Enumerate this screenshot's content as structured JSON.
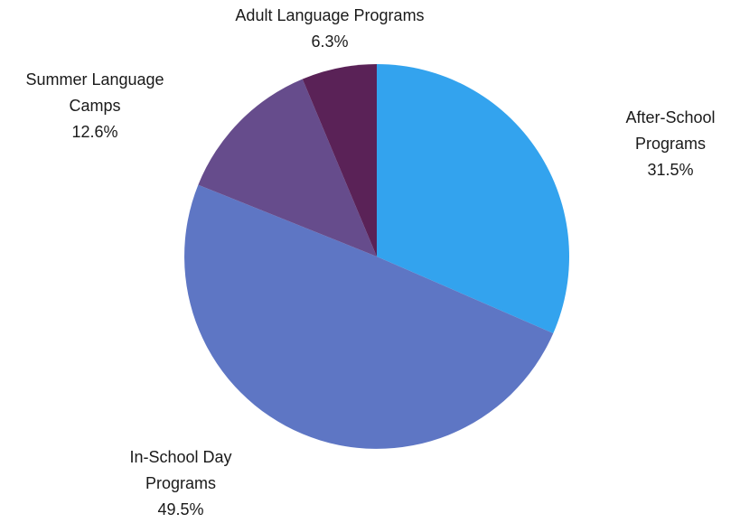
{
  "chart_data": {
    "type": "pie",
    "title": "",
    "slices": [
      {
        "label_lines": [
          "After-School",
          "Programs"
        ],
        "value": 31.5,
        "value_label": "31.5%",
        "color": "#33a3ee"
      },
      {
        "label_lines": [
          "In-School Day",
          "Programs"
        ],
        "value": 49.5,
        "value_label": "49.5%",
        "color": "#5e76c4"
      },
      {
        "label_lines": [
          "Summer Language",
          "Camps"
        ],
        "value": 12.6,
        "value_label": "12.6%",
        "color": "#664c8c"
      },
      {
        "label_lines": [
          "Adult Language Programs"
        ],
        "value": 6.3,
        "value_label": "6.3%",
        "color": "#5a2257"
      }
    ],
    "start_angle": "12 o'clock",
    "direction": "clockwise",
    "legend": "none"
  }
}
